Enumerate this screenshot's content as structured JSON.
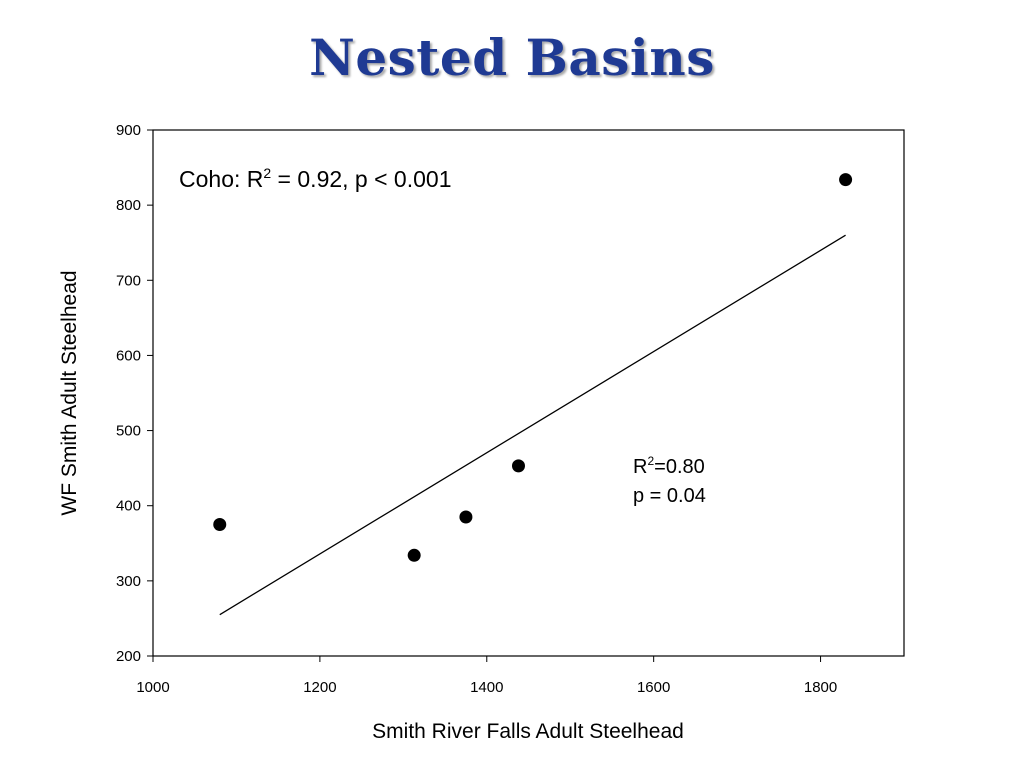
{
  "slide": {
    "title": "Nested Basins"
  },
  "colors": {
    "title": "#1f3a93",
    "marker": "#000000",
    "line": "#000000"
  },
  "chart_data": {
    "type": "scatter",
    "xlabel": "Smith River Falls Adult Steelhead",
    "ylabel": "WF Smith Adult Steelhead",
    "xlim": [
      1000,
      1900
    ],
    "ylim": [
      200,
      900
    ],
    "xticks": [
      1000,
      1200,
      1400,
      1600,
      1800
    ],
    "yticks": [
      200,
      300,
      400,
      500,
      600,
      700,
      800,
      900
    ],
    "grid": false,
    "series": [
      {
        "points": [
          {
            "x": 1080,
            "y": 375
          },
          {
            "x": 1313,
            "y": 334
          },
          {
            "x": 1375,
            "y": 385
          },
          {
            "x": 1438,
            "y": 453
          },
          {
            "x": 1830,
            "y": 834
          }
        ]
      }
    ],
    "trendline": {
      "x1": 1080,
      "y1": 255,
      "x2": 1830,
      "y2": 760
    },
    "annotations": {
      "coho_prefix": "Coho: R",
      "coho_sup": "2",
      "coho_suffix": " = 0.92, p < 0.001",
      "r2_prefix": "R",
      "r2_sup": "2",
      "r2_suffix": "=0.80",
      "p_text": "p = 0.04"
    }
  }
}
